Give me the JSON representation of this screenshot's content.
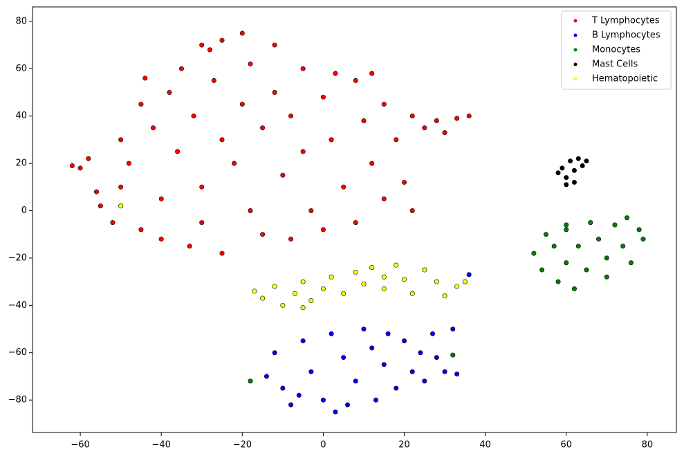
{
  "chart_data": {
    "type": "scatter",
    "xlim": [
      -71.8,
      87.2
    ],
    "ylim": [
      -93.7,
      86.1
    ],
    "xticks": [
      {
        "value": -60,
        "label": "−60"
      },
      {
        "value": -40,
        "label": "−40"
      },
      {
        "value": -20,
        "label": "−20"
      },
      0,
      20,
      40,
      60,
      80
    ],
    "yticks": [
      {
        "value": -80,
        "label": "−80"
      },
      {
        "value": -60,
        "label": "−60"
      },
      {
        "value": -40,
        "label": "−40"
      },
      {
        "value": -20,
        "label": "−20"
      },
      0,
      20,
      40,
      60,
      80
    ],
    "legend": "upper right",
    "series": [
      {
        "name": "T Lymphocytes",
        "color": "#ff0000",
        "x": [
          -62,
          -58,
          -55,
          -52,
          -50,
          -50,
          -48,
          -45,
          -45,
          -44,
          -42,
          -40,
          -40,
          -38,
          -36,
          -35,
          -33,
          -32,
          -30,
          -30,
          -28,
          -27,
          -25,
          -25,
          -22,
          -20,
          -20,
          -18,
          -18,
          -15,
          -15,
          -12,
          -12,
          -10,
          -8,
          -8,
          -5,
          -5,
          -3,
          0,
          0,
          2,
          3,
          5,
          8,
          8,
          10,
          12,
          12,
          15,
          15,
          18,
          20,
          22,
          22,
          25,
          28,
          30,
          33,
          36,
          -60,
          -56,
          -25,
          -30
        ],
        "y": [
          19,
          22,
          2,
          -5,
          10,
          30,
          20,
          -8,
          45,
          56,
          35,
          5,
          -12,
          50,
          25,
          60,
          -15,
          40,
          10,
          -5,
          68,
          55,
          30,
          -18,
          20,
          75,
          45,
          62,
          0,
          -10,
          35,
          70,
          50,
          15,
          -12,
          40,
          60,
          25,
          0,
          48,
          -8,
          30,
          58,
          10,
          55,
          -5,
          38,
          20,
          58,
          45,
          5,
          30,
          12,
          40,
          0,
          35,
          38,
          33,
          39,
          40,
          18,
          8,
          72,
          70
        ]
      },
      {
        "name": "B Lymphocytes",
        "color": "#0000ff",
        "x": [
          -12,
          -10,
          -8,
          -5,
          -3,
          0,
          2,
          3,
          5,
          8,
          10,
          12,
          13,
          15,
          18,
          20,
          22,
          25,
          28,
          30,
          27,
          32,
          -14,
          -6,
          6,
          16,
          24,
          33,
          36
        ],
        "y": [
          -60,
          -75,
          -82,
          -55,
          -68,
          -80,
          -52,
          -85,
          -62,
          -72,
          -50,
          -58,
          -80,
          -65,
          -75,
          -55,
          -68,
          -72,
          -62,
          -68,
          -52,
          -50,
          -70,
          -78,
          -82,
          -52,
          -60,
          -69,
          -27
        ]
      },
      {
        "name": "Monocytes",
        "color": "#008000",
        "x": [
          52,
          54,
          55,
          57,
          58,
          60,
          60,
          62,
          63,
          65,
          66,
          68,
          70,
          70,
          72,
          74,
          75,
          76,
          78,
          79,
          60,
          -18,
          32
        ],
        "y": [
          -18,
          -25,
          -10,
          -15,
          -30,
          -8,
          -22,
          -33,
          -15,
          -25,
          -5,
          -12,
          -20,
          -28,
          -6,
          -15,
          -3,
          -22,
          -8,
          -12,
          -6,
          -72,
          -61
        ]
      },
      {
        "name": "Mast Cells",
        "color": "#000000",
        "x": [
          59,
          60,
          61,
          62,
          63,
          64,
          65,
          60,
          62,
          58
        ],
        "y": [
          18,
          14,
          21,
          17,
          22,
          19,
          21,
          11,
          12,
          16
        ]
      },
      {
        "name": "Hematopoietic",
        "color": "#ffff00",
        "x": [
          -17,
          -15,
          -12,
          -10,
          -7,
          -5,
          -3,
          0,
          2,
          5,
          8,
          10,
          12,
          15,
          18,
          20,
          22,
          25,
          28,
          30,
          33,
          35,
          -5,
          15,
          -50
        ],
        "y": [
          -34,
          -37,
          -32,
          -40,
          -35,
          -30,
          -38,
          -33,
          -28,
          -35,
          -26,
          -31,
          -24,
          -33,
          -23,
          -29,
          -35,
          -25,
          -30,
          -36,
          -32,
          -30,
          -41,
          -28,
          2
        ]
      }
    ]
  }
}
